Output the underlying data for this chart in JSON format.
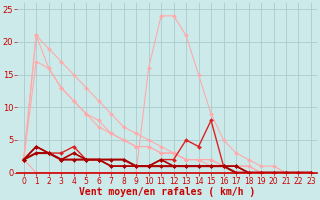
{
  "background_color": "#cceaea",
  "grid_color": "#aacccc",
  "xlabel": "Vent moyen/en rafales ( km/h )",
  "xlabel_color": "#cc0000",
  "xlabel_fontsize": 7,
  "tick_color": "#cc0000",
  "tick_fontsize": 6,
  "xlim": [
    -0.5,
    23.5
  ],
  "ylim": [
    0,
    26
  ],
  "yticks": [
    0,
    5,
    10,
    15,
    20,
    25
  ],
  "xticks": [
    0,
    1,
    2,
    3,
    4,
    5,
    6,
    7,
    8,
    9,
    10,
    11,
    12,
    13,
    14,
    15,
    16,
    17,
    18,
    19,
    20,
    21,
    22,
    23
  ],
  "lines": [
    {
      "x": [
        0,
        1,
        2,
        3,
        4,
        5,
        6,
        7,
        8,
        9,
        10,
        11,
        12,
        13,
        14,
        15,
        16,
        17,
        18,
        19,
        20,
        21,
        22,
        23
      ],
      "y": [
        2,
        21,
        19,
        17,
        15,
        13,
        11,
        9,
        7,
        6,
        5,
        4,
        3,
        2,
        2,
        1,
        1,
        1,
        0,
        0,
        0,
        0,
        0,
        0
      ],
      "color": "#ffaaaa",
      "linewidth": 0.8,
      "marker": "D",
      "markersize": 2.0
    },
    {
      "x": [
        0,
        1,
        2,
        3,
        4,
        5,
        6,
        7,
        8,
        9,
        10,
        11,
        12,
        13,
        14,
        15,
        16,
        17,
        18,
        19,
        20,
        21,
        22,
        23
      ],
      "y": [
        2,
        21,
        16,
        13,
        11,
        9,
        8,
        6,
        5,
        4,
        4,
        3,
        3,
        2,
        2,
        2,
        1,
        1,
        1,
        0,
        0,
        0,
        0,
        0
      ],
      "color": "#ffaaaa",
      "linewidth": 0.8,
      "marker": "D",
      "markersize": 2.0
    },
    {
      "x": [
        0,
        1,
        2,
        3,
        4,
        5,
        6,
        7,
        8,
        9,
        10,
        11,
        12,
        13,
        14,
        15,
        16,
        17,
        18,
        19,
        20,
        21,
        22,
        23
      ],
      "y": [
        2,
        17,
        16,
        13,
        11,
        9,
        7,
        6,
        5,
        4,
        4,
        3,
        3,
        2,
        2,
        2,
        1,
        1,
        1,
        0,
        0,
        0,
        0,
        0
      ],
      "color": "#ffaaaa",
      "linewidth": 0.8,
      "marker": "D",
      "markersize": 2.0
    },
    {
      "x": [
        0,
        1,
        2,
        3,
        4,
        5,
        6,
        7,
        8,
        9,
        10,
        11,
        12,
        13,
        14,
        15,
        16,
        17,
        18,
        19,
        20,
        21,
        22,
        23
      ],
      "y": [
        2,
        0,
        0,
        0,
        0,
        0,
        0,
        0,
        0,
        0,
        16,
        24,
        24,
        21,
        15,
        9,
        5,
        3,
        2,
        1,
        1,
        0,
        0,
        0
      ],
      "color": "#ffaaaa",
      "linewidth": 0.8,
      "marker": "D",
      "markersize": 2.0
    },
    {
      "x": [
        0,
        1,
        2,
        3,
        4,
        5,
        6,
        7,
        8,
        9,
        10,
        11,
        12,
        13,
        14,
        15,
        16,
        17,
        18,
        19,
        20,
        21,
        22,
        23
      ],
      "y": [
        2,
        4,
        3,
        3,
        4,
        2,
        2,
        1,
        1,
        1,
        1,
        2,
        2,
        5,
        4,
        8,
        1,
        1,
        0,
        0,
        0,
        0,
        0,
        0
      ],
      "color": "#dd2222",
      "linewidth": 1.0,
      "marker": "D",
      "markersize": 2.0
    },
    {
      "x": [
        0,
        1,
        2,
        3,
        4,
        5,
        6,
        7,
        8,
        9,
        10,
        11,
        12,
        13,
        14,
        15,
        16,
        17,
        18,
        19,
        20,
        21,
        22,
        23
      ],
      "y": [
        2,
        4,
        3,
        2,
        3,
        2,
        2,
        1,
        1,
        1,
        1,
        2,
        1,
        1,
        1,
        1,
        1,
        1,
        0,
        0,
        0,
        0,
        0,
        0
      ],
      "color": "#aa0000",
      "linewidth": 1.2,
      "marker": "D",
      "markersize": 2.0
    },
    {
      "x": [
        0,
        1,
        2,
        3,
        4,
        5,
        6,
        7,
        8,
        9,
        10,
        11,
        12,
        13,
        14,
        15,
        16,
        17,
        18,
        19,
        20,
        21,
        22,
        23
      ],
      "y": [
        2,
        3,
        3,
        2,
        2,
        2,
        2,
        2,
        2,
        1,
        1,
        1,
        1,
        1,
        1,
        1,
        1,
        0,
        0,
        0,
        0,
        0,
        0,
        0
      ],
      "color": "#aa0000",
      "linewidth": 1.5,
      "marker": "D",
      "markersize": 2.0
    }
  ]
}
